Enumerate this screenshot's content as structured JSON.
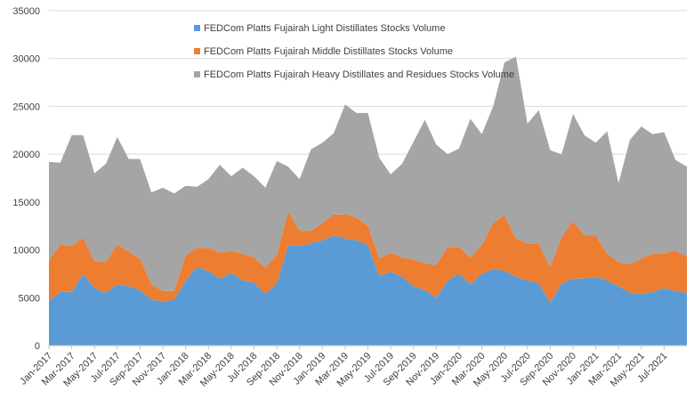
{
  "chart_data": {
    "type": "area",
    "stacked": true,
    "title": "",
    "xlabel": "",
    "ylabel": "",
    "ylim": [
      0,
      35000
    ],
    "yticks": [
      "0",
      "5000",
      "10000",
      "15000",
      "20000",
      "25000",
      "30000",
      "35000"
    ],
    "grid": true,
    "legend_position": "top-center, inside plot",
    "x_ticks": [
      "Jan-2017",
      "Mar-2017",
      "May-2017",
      "Jul-2017",
      "Sep-2017",
      "Nov-2017",
      "Jan-2018",
      "Mar-2018",
      "May-2018",
      "Jul-2018",
      "Sep-2018",
      "Nov-2018",
      "Jan-2019",
      "Mar-2019",
      "May-2019",
      "Jul-2019",
      "Sep-2019",
      "Nov-2019",
      "Jan-2020",
      "Mar-2020",
      "May-2020",
      "Jul-2020",
      "Sep-2020",
      "Nov-2020",
      "Jan-2021",
      "Mar-2021",
      "May-2021",
      "Jul-2021"
    ],
    "x": [
      "2017-01",
      "2017-02",
      "2017-03",
      "2017-04",
      "2017-05",
      "2017-06",
      "2017-07",
      "2017-08",
      "2017-09",
      "2017-10",
      "2017-11",
      "2017-12",
      "2018-01",
      "2018-02",
      "2018-03",
      "2018-04",
      "2018-05",
      "2018-06",
      "2018-07",
      "2018-08",
      "2018-09",
      "2018-10",
      "2018-11",
      "2018-12",
      "2019-01",
      "2019-02",
      "2019-03",
      "2019-04",
      "2019-05",
      "2019-06",
      "2019-07",
      "2019-08",
      "2019-09",
      "2019-10",
      "2019-11",
      "2019-12",
      "2020-01",
      "2020-02",
      "2020-03",
      "2020-04",
      "2020-05",
      "2020-06",
      "2020-07",
      "2020-08",
      "2020-09",
      "2020-10",
      "2020-11",
      "2020-12",
      "2021-01",
      "2021-02",
      "2021-03",
      "2021-04",
      "2021-05",
      "2021-06",
      "2021-07",
      "2021-08",
      "2021-09"
    ],
    "series": [
      {
        "name": "FEDCom Platts Fujairah Light Distillates Stocks Volume",
        "color": "#5b9bd5",
        "values": [
          4700,
          5600,
          5600,
          7500,
          6000,
          5500,
          6400,
          6200,
          5800,
          4800,
          4600,
          4800,
          6800,
          8200,
          7800,
          7000,
          7600,
          6800,
          6600,
          5400,
          6500,
          10500,
          10400,
          10700,
          11000,
          11500,
          11200,
          11000,
          10500,
          7300,
          7700,
          7200,
          6200,
          5800,
          5000,
          6800,
          7500,
          6400,
          7500,
          8000,
          7800,
          7200,
          6800,
          6500,
          4500,
          6500,
          7000,
          7000,
          7200,
          6800,
          6200,
          5500,
          5400,
          5600,
          6000,
          5700,
          5500
        ]
      },
      {
        "name": "FEDCom Platts Fujairah Middle Distillates Stocks Volume",
        "color": "#ed7d31",
        "values": [
          4200,
          5000,
          4800,
          3800,
          2800,
          3200,
          4200,
          3600,
          3300,
          1600,
          1100,
          900,
          2600,
          2000,
          2400,
          2700,
          2300,
          2800,
          2600,
          2700,
          3000,
          3500,
          1600,
          1300,
          1800,
          2200,
          2500,
          2400,
          2000,
          1800,
          2000,
          2000,
          2800,
          2800,
          3400,
          3500,
          2800,
          2800,
          3000,
          4800,
          5800,
          4000,
          3900,
          4100,
          3700,
          4800,
          6000,
          4500,
          4300,
          2800,
          2500,
          3000,
          3700,
          4000,
          3600,
          4200,
          3800
        ]
      },
      {
        "name": "FEDCom Platts Fujairah Heavy Distillates and Residues Stocks Volume",
        "color": "#a5a5a5",
        "values": [
          10300,
          8500,
          11600,
          10700,
          9200,
          10300,
          11200,
          9700,
          10400,
          9600,
          10800,
          10200,
          7300,
          6400,
          7200,
          9200,
          7800,
          9000,
          8500,
          8400,
          9800,
          4700,
          5400,
          8500,
          8400,
          8500,
          11500,
          10900,
          11800,
          10500,
          8200,
          9800,
          12300,
          15000,
          12600,
          9700,
          10300,
          14500,
          11600,
          12200,
          16000,
          19000,
          12500,
          14000,
          12200,
          8700,
          11200,
          10500,
          9700,
          12800,
          8300,
          13000,
          13800,
          12500,
          12700,
          9500,
          9400
        ]
      }
    ]
  }
}
